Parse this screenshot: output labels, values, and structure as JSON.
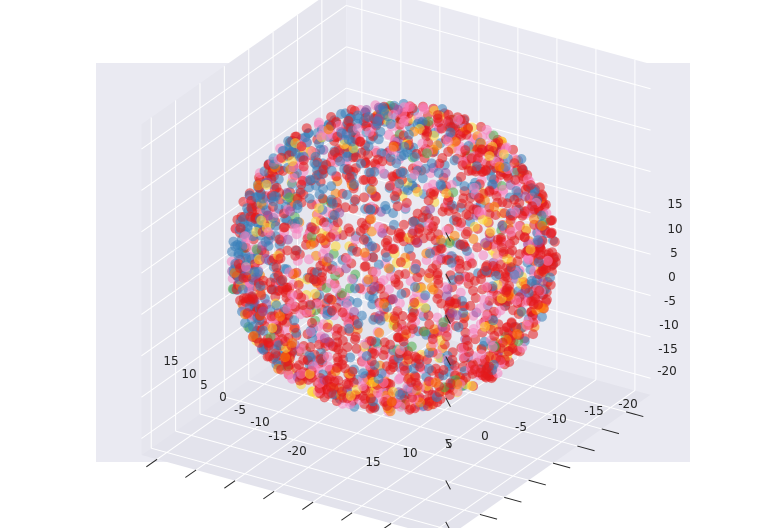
{
  "chart_data": {
    "type": "scatter",
    "projection": "3d",
    "title": "",
    "xlabel": "",
    "ylabel": "",
    "zlabel": "",
    "grid": true,
    "legend": "none",
    "xlim": [
      -25,
      17
    ],
    "ylim": [
      -22,
      17
    ],
    "zlim": [
      -22,
      18
    ],
    "x_ticks": [
      "15",
      "10",
      "5",
      "0",
      "-5",
      "-10",
      "-15",
      "-20"
    ],
    "y_ticks": [
      "15",
      "10",
      "5",
      "0",
      "-5",
      "-10",
      "-15",
      "-20"
    ],
    "z_ticks": [
      "15",
      "10",
      "5",
      "0",
      "-5",
      "-10",
      "-15",
      "-20"
    ],
    "point_colors": [
      "#e41a1c",
      "#377eb8",
      "#f781bf",
      "#ffd92f",
      "#ff7f00",
      "#984ea3",
      "#4daf4a"
    ],
    "color_weights": [
      0.52,
      0.14,
      0.17,
      0.06,
      0.05,
      0.04,
      0.02
    ],
    "point_count_estimate": 6000,
    "cloud_shape": "ellipsoid",
    "cloud_extent": {
      "x": [
        -22,
        15
      ],
      "y": [
        -20,
        15
      ],
      "z": [
        -18,
        15
      ]
    },
    "style": {
      "figure_background": "#ffffff",
      "axes_background": "#eaeaf2",
      "pane_colors": [
        "#e3e3ec",
        "#e6e6ee",
        "#eaeaf2"
      ],
      "grid_color": "#ffffff",
      "text_color": "#262626"
    }
  }
}
